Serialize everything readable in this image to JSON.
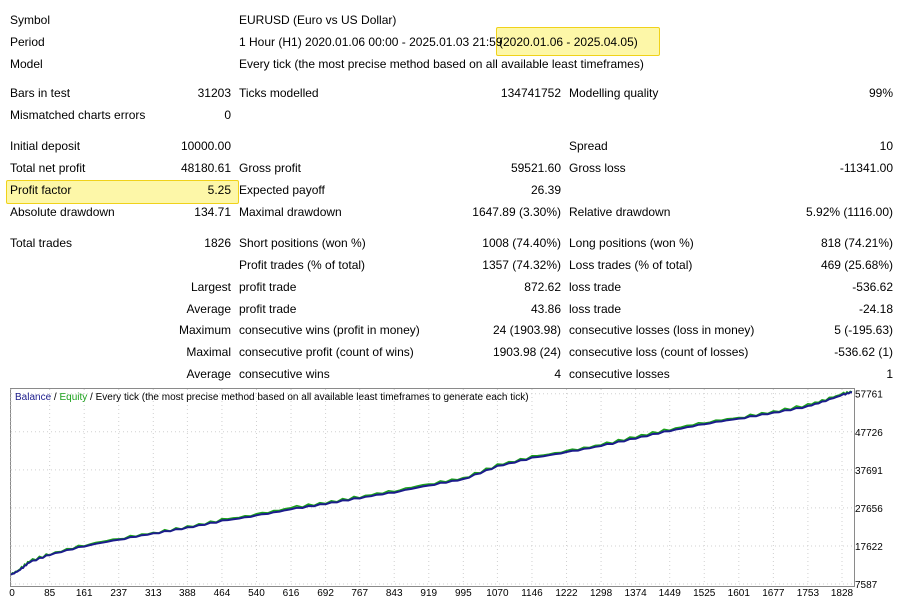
{
  "report": {
    "symbol": {
      "label": "Symbol",
      "value": "EURUSD (Euro vs US Dollar)"
    },
    "period": {
      "label": "Period",
      "value": "1 Hour (H1) 2020.01.06 00:00 - 2025.01.03 21:59",
      "highlight": "(2020.01.06 - 2025.04.05)"
    },
    "model": {
      "label": "Model",
      "value": "Every tick (the most precise method based on all available least timeframes)"
    },
    "bars_in_test": {
      "label": "Bars in test",
      "value": "31203"
    },
    "ticks_modelled": {
      "label": "Ticks modelled",
      "value": "134741752"
    },
    "modelling_quality": {
      "label": "Modelling quality",
      "value": "99%"
    },
    "mismatched": {
      "label": "Mismatched charts errors",
      "value": "0"
    },
    "initial_deposit": {
      "label": "Initial deposit",
      "value": "10000.00"
    },
    "spread": {
      "label": "Spread",
      "value": "10"
    },
    "total_net_profit": {
      "label": "Total net profit",
      "value": "48180.61"
    },
    "gross_profit": {
      "label": "Gross profit",
      "value": "59521.60"
    },
    "gross_loss": {
      "label": "Gross loss",
      "value": "-11341.00"
    },
    "profit_factor": {
      "label": "Profit factor",
      "value": "5.25"
    },
    "expected_payoff": {
      "label": "Expected payoff",
      "value": "26.39"
    },
    "absolute_drawdown": {
      "label": "Absolute drawdown",
      "value": "134.71"
    },
    "maximal_drawdown": {
      "label": "Maximal drawdown",
      "value": "1647.89 (3.30%)"
    },
    "relative_drawdown": {
      "label": "Relative drawdown",
      "value": "5.92% (1116.00)"
    },
    "total_trades": {
      "label": "Total trades",
      "value": "1826"
    },
    "short_positions": {
      "label": "Short positions (won %)",
      "value": "1008 (74.40%)"
    },
    "long_positions": {
      "label": "Long positions (won %)",
      "value": "818 (74.21%)"
    },
    "profit_trades": {
      "label": "Profit trades (% of total)",
      "value": "1357 (74.32%)"
    },
    "loss_trades": {
      "label": "Loss trades (% of total)",
      "value": "469 (25.68%)"
    },
    "largest": {
      "prefix": "Largest",
      "profit_label": "profit trade",
      "profit_value": "872.62",
      "loss_label": "loss trade",
      "loss_value": "-536.62"
    },
    "average": {
      "prefix": "Average",
      "profit_label": "profit trade",
      "profit_value": "43.86",
      "loss_label": "loss trade",
      "loss_value": "-24.18"
    },
    "maximum": {
      "prefix": "Maximum",
      "profit_label": "consecutive wins (profit in money)",
      "profit_value": "24 (1903.98)",
      "loss_label": "consecutive losses (loss in money)",
      "loss_value": "5 (-195.63)"
    },
    "maximal": {
      "prefix": "Maximal",
      "profit_label": "consecutive profit (count of wins)",
      "profit_value": "1903.98 (24)",
      "loss_label": "consecutive loss (count of losses)",
      "loss_value": "-536.62 (1)"
    },
    "average_consecutive": {
      "prefix": "Average",
      "profit_label": "consecutive wins",
      "profit_value": "4",
      "loss_label": "consecutive losses",
      "loss_value": "1"
    }
  },
  "chart_legend": {
    "balance": "Balance",
    "sep1": " / ",
    "equity": "Equity",
    "rest": " / Every tick (the most precise method based on all available least timeframes to generate each tick)"
  },
  "colors": {
    "balance": "#1c1c8c",
    "equity": "#1aa01a",
    "highlight_fill": "#fdf7a8",
    "highlight_border": "#f0d21a"
  },
  "chart_data": {
    "type": "line",
    "xlabel": "",
    "ylabel": "",
    "x_ticks": [
      0,
      85,
      161,
      237,
      313,
      388,
      464,
      540,
      616,
      692,
      767,
      843,
      919,
      995,
      1070,
      1146,
      1222,
      1298,
      1374,
      1449,
      1525,
      1601,
      1677,
      1753,
      1828
    ],
    "y_ticks": [
      7587,
      17622,
      27656,
      37691,
      47726,
      57761
    ],
    "xlim": [
      0,
      1850
    ],
    "ylim": [
      7587,
      59000
    ],
    "series": [
      {
        "name": "Balance",
        "x": [
          0,
          20,
          40,
          85,
          161,
          237,
          313,
          388,
          464,
          540,
          616,
          692,
          767,
          843,
          919,
          995,
          1070,
          1146,
          1222,
          1298,
          1374,
          1449,
          1525,
          1601,
          1677,
          1753,
          1800,
          1828,
          1850
        ],
        "y": [
          10000,
          11300,
          13300,
          15300,
          17600,
          19300,
          20900,
          22400,
          24200,
          25600,
          27300,
          28700,
          30300,
          31800,
          33600,
          35200,
          38600,
          40800,
          42300,
          44000,
          46000,
          48000,
          49800,
          51200,
          52700,
          54400,
          56200,
          57400,
          58180
        ]
      },
      {
        "name": "Equity",
        "x": [
          0,
          20,
          40,
          85,
          161,
          237,
          313,
          388,
          464,
          540,
          616,
          692,
          767,
          843,
          919,
          995,
          1070,
          1146,
          1222,
          1298,
          1374,
          1449,
          1525,
          1601,
          1677,
          1753,
          1800,
          1828,
          1850
        ],
        "y": [
          10100,
          11500,
          13600,
          15500,
          17900,
          19600,
          21100,
          22600,
          24500,
          25900,
          27700,
          29000,
          30600,
          32200,
          34000,
          35500,
          38900,
          41100,
          42600,
          44300,
          46400,
          48400,
          50200,
          51500,
          53000,
          54800,
          56500,
          57700,
          58300
        ]
      }
    ]
  }
}
